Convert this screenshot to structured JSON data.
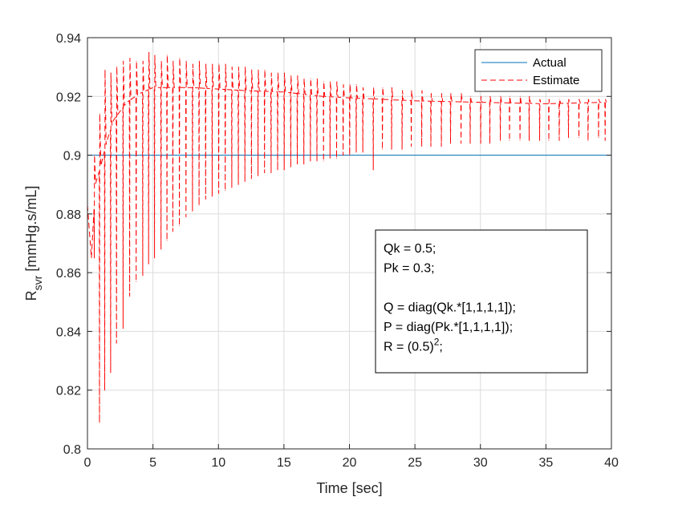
{
  "chart_data": {
    "type": "line",
    "title": "",
    "xlabel": "Time [sec]",
    "ylabel": {
      "main": "R",
      "subscript": "svr",
      "rest": " [mmHg.s/mL]"
    },
    "xlim": [
      0,
      40
    ],
    "ylim": [
      0.8,
      0.94
    ],
    "xticks": [
      "0",
      "5",
      "10",
      "15",
      "20",
      "25",
      "30",
      "35",
      "40"
    ],
    "yticks": [
      "0.8",
      "0.82",
      "0.84",
      "0.86",
      "0.88",
      "0.9",
      "0.92",
      "0.94"
    ],
    "grid": true,
    "legend_position": "top-right",
    "series": [
      {
        "name": "Actual",
        "color": "#0072BD",
        "line_style": "solid",
        "x": [
          0,
          40
        ],
        "y": [
          0.9,
          0.9
        ]
      },
      {
        "name": "Estimate",
        "color": "#FF0000",
        "line_style": "dashed",
        "baseline": {
          "x": [
            0,
            0.3,
            0.6,
            1,
            1.5,
            2,
            2.5,
            3,
            4,
            5,
            6,
            8,
            10,
            12,
            15,
            18,
            20,
            25,
            30,
            35,
            39.5
          ],
          "y": [
            0.883,
            0.865,
            0.89,
            0.896,
            0.905,
            0.912,
            0.915,
            0.918,
            0.921,
            0.923,
            0.923,
            0.923,
            0.9225,
            0.922,
            0.9215,
            0.92,
            0.9195,
            0.9185,
            0.918,
            0.9175,
            0.918
          ]
        },
        "spikes": {
          "x": [
            0.5,
            0.9,
            1.3,
            1.75,
            2.2,
            2.7,
            3.2,
            3.7,
            4.2,
            4.65,
            5.1,
            5.6,
            6.05,
            6.5,
            7.0,
            7.5,
            8.0,
            8.5,
            9.0,
            9.5,
            10.0,
            10.5,
            11.0,
            11.5,
            12.0,
            12.5,
            13.0,
            13.5,
            14.0,
            14.5,
            15.0,
            15.5,
            16.0,
            16.5,
            17.0,
            17.5,
            18.0,
            18.5,
            19.0,
            19.5,
            20.0,
            20.5,
            21.0,
            21.8,
            22.5,
            23.2,
            24.0,
            24.7,
            25.5,
            26.2,
            27.0,
            27.7,
            28.5,
            29.2,
            30.0,
            30.7,
            31.5,
            32.2,
            33.0,
            33.7,
            34.5,
            35.2,
            36.0,
            36.7,
            37.5,
            38.2,
            39.0,
            39.5
          ],
          "min": [
            0.865,
            0.809,
            0.82,
            0.826,
            0.836,
            0.841,
            0.852,
            0.857,
            0.859,
            0.863,
            0.865,
            0.868,
            0.871,
            0.874,
            0.876,
            0.879,
            0.881,
            0.883,
            0.885,
            0.886,
            0.887,
            0.888,
            0.889,
            0.89,
            0.891,
            0.892,
            0.893,
            0.894,
            0.894,
            0.895,
            0.895,
            0.896,
            0.897,
            0.897,
            0.898,
            0.898,
            0.898,
            0.899,
            0.899,
            0.9,
            0.9,
            0.901,
            0.901,
            0.895,
            0.902,
            0.902,
            0.902,
            0.903,
            0.903,
            0.903,
            0.903,
            0.904,
            0.904,
            0.904,
            0.904,
            0.904,
            0.905,
            0.905,
            0.905,
            0.905,
            0.905,
            0.905,
            0.905,
            0.906,
            0.906,
            0.905,
            0.906,
            0.905
          ],
          "max": [
            0.9,
            0.914,
            0.929,
            0.928,
            0.93,
            0.932,
            0.933,
            0.932,
            0.932,
            0.935,
            0.934,
            0.932,
            0.934,
            0.932,
            0.933,
            0.932,
            0.931,
            0.932,
            0.931,
            0.931,
            0.931,
            0.931,
            0.93,
            0.93,
            0.93,
            0.929,
            0.929,
            0.929,
            0.928,
            0.928,
            0.928,
            0.927,
            0.927,
            0.926,
            0.926,
            0.926,
            0.925,
            0.925,
            0.925,
            0.924,
            0.924,
            0.924,
            0.923,
            0.923,
            0.923,
            0.923,
            0.922,
            0.922,
            0.922,
            0.921,
            0.921,
            0.921,
            0.921,
            0.92,
            0.92,
            0.92,
            0.92,
            0.92,
            0.92,
            0.92,
            0.919,
            0.919,
            0.919,
            0.919,
            0.919,
            0.919,
            0.919,
            0.919
          ]
        }
      }
    ],
    "annotation": {
      "lines": [
        {
          "text": "Qk = 0.5;"
        },
        {
          "text": "Pk = 0.3;"
        },
        {
          "text": ""
        },
        {
          "text": "Q = diag(Qk.*[1,1,1,1]);"
        },
        {
          "text": "P = diag(Pk.*[1,1,1,1]);"
        },
        {
          "text": "R = (0.5)",
          "sup": "2",
          "after": ";"
        }
      ]
    }
  }
}
